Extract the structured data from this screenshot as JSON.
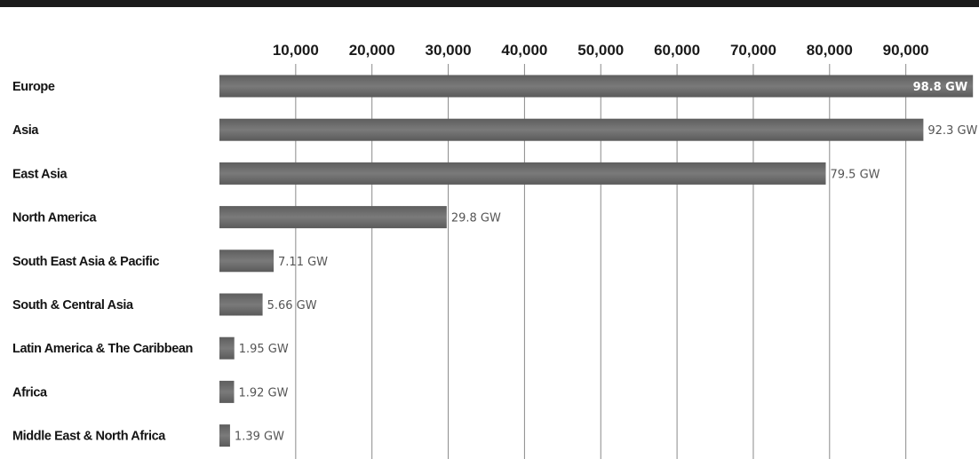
{
  "chart_data": {
    "type": "bar",
    "orientation": "horizontal",
    "categories": [
      "Europe",
      "Asia",
      "East Asia",
      "North America",
      "South East Asia & Pacific",
      "South & Central Asia",
      "Latin America & The Caribbean",
      "Africa",
      "Middle East & North Africa"
    ],
    "values": [
      98800,
      92300,
      79500,
      29800,
      7110,
      5660,
      1950,
      1920,
      1390
    ],
    "data_labels": [
      "98.8 GW",
      "92.3 GW",
      "79.5 GW",
      "29.8 GW",
      "7.11 GW",
      "5.66 GW",
      "1.95 GW",
      "1.92 GW",
      "1.39 GW"
    ],
    "x_ticks": [
      10000,
      20000,
      30000,
      40000,
      50000,
      60000,
      70000,
      80000,
      90000
    ],
    "x_tick_labels": [
      "10,000",
      "20,000",
      "30,000",
      "40,000",
      "50,000",
      "60,000",
      "70,000",
      "80,000",
      "90,000"
    ],
    "xlim": [
      0,
      100000
    ],
    "title": "",
    "xlabel": "",
    "ylabel": "",
    "grid": "vertical",
    "legend": "none",
    "bar_color": "#6b6b6b"
  }
}
